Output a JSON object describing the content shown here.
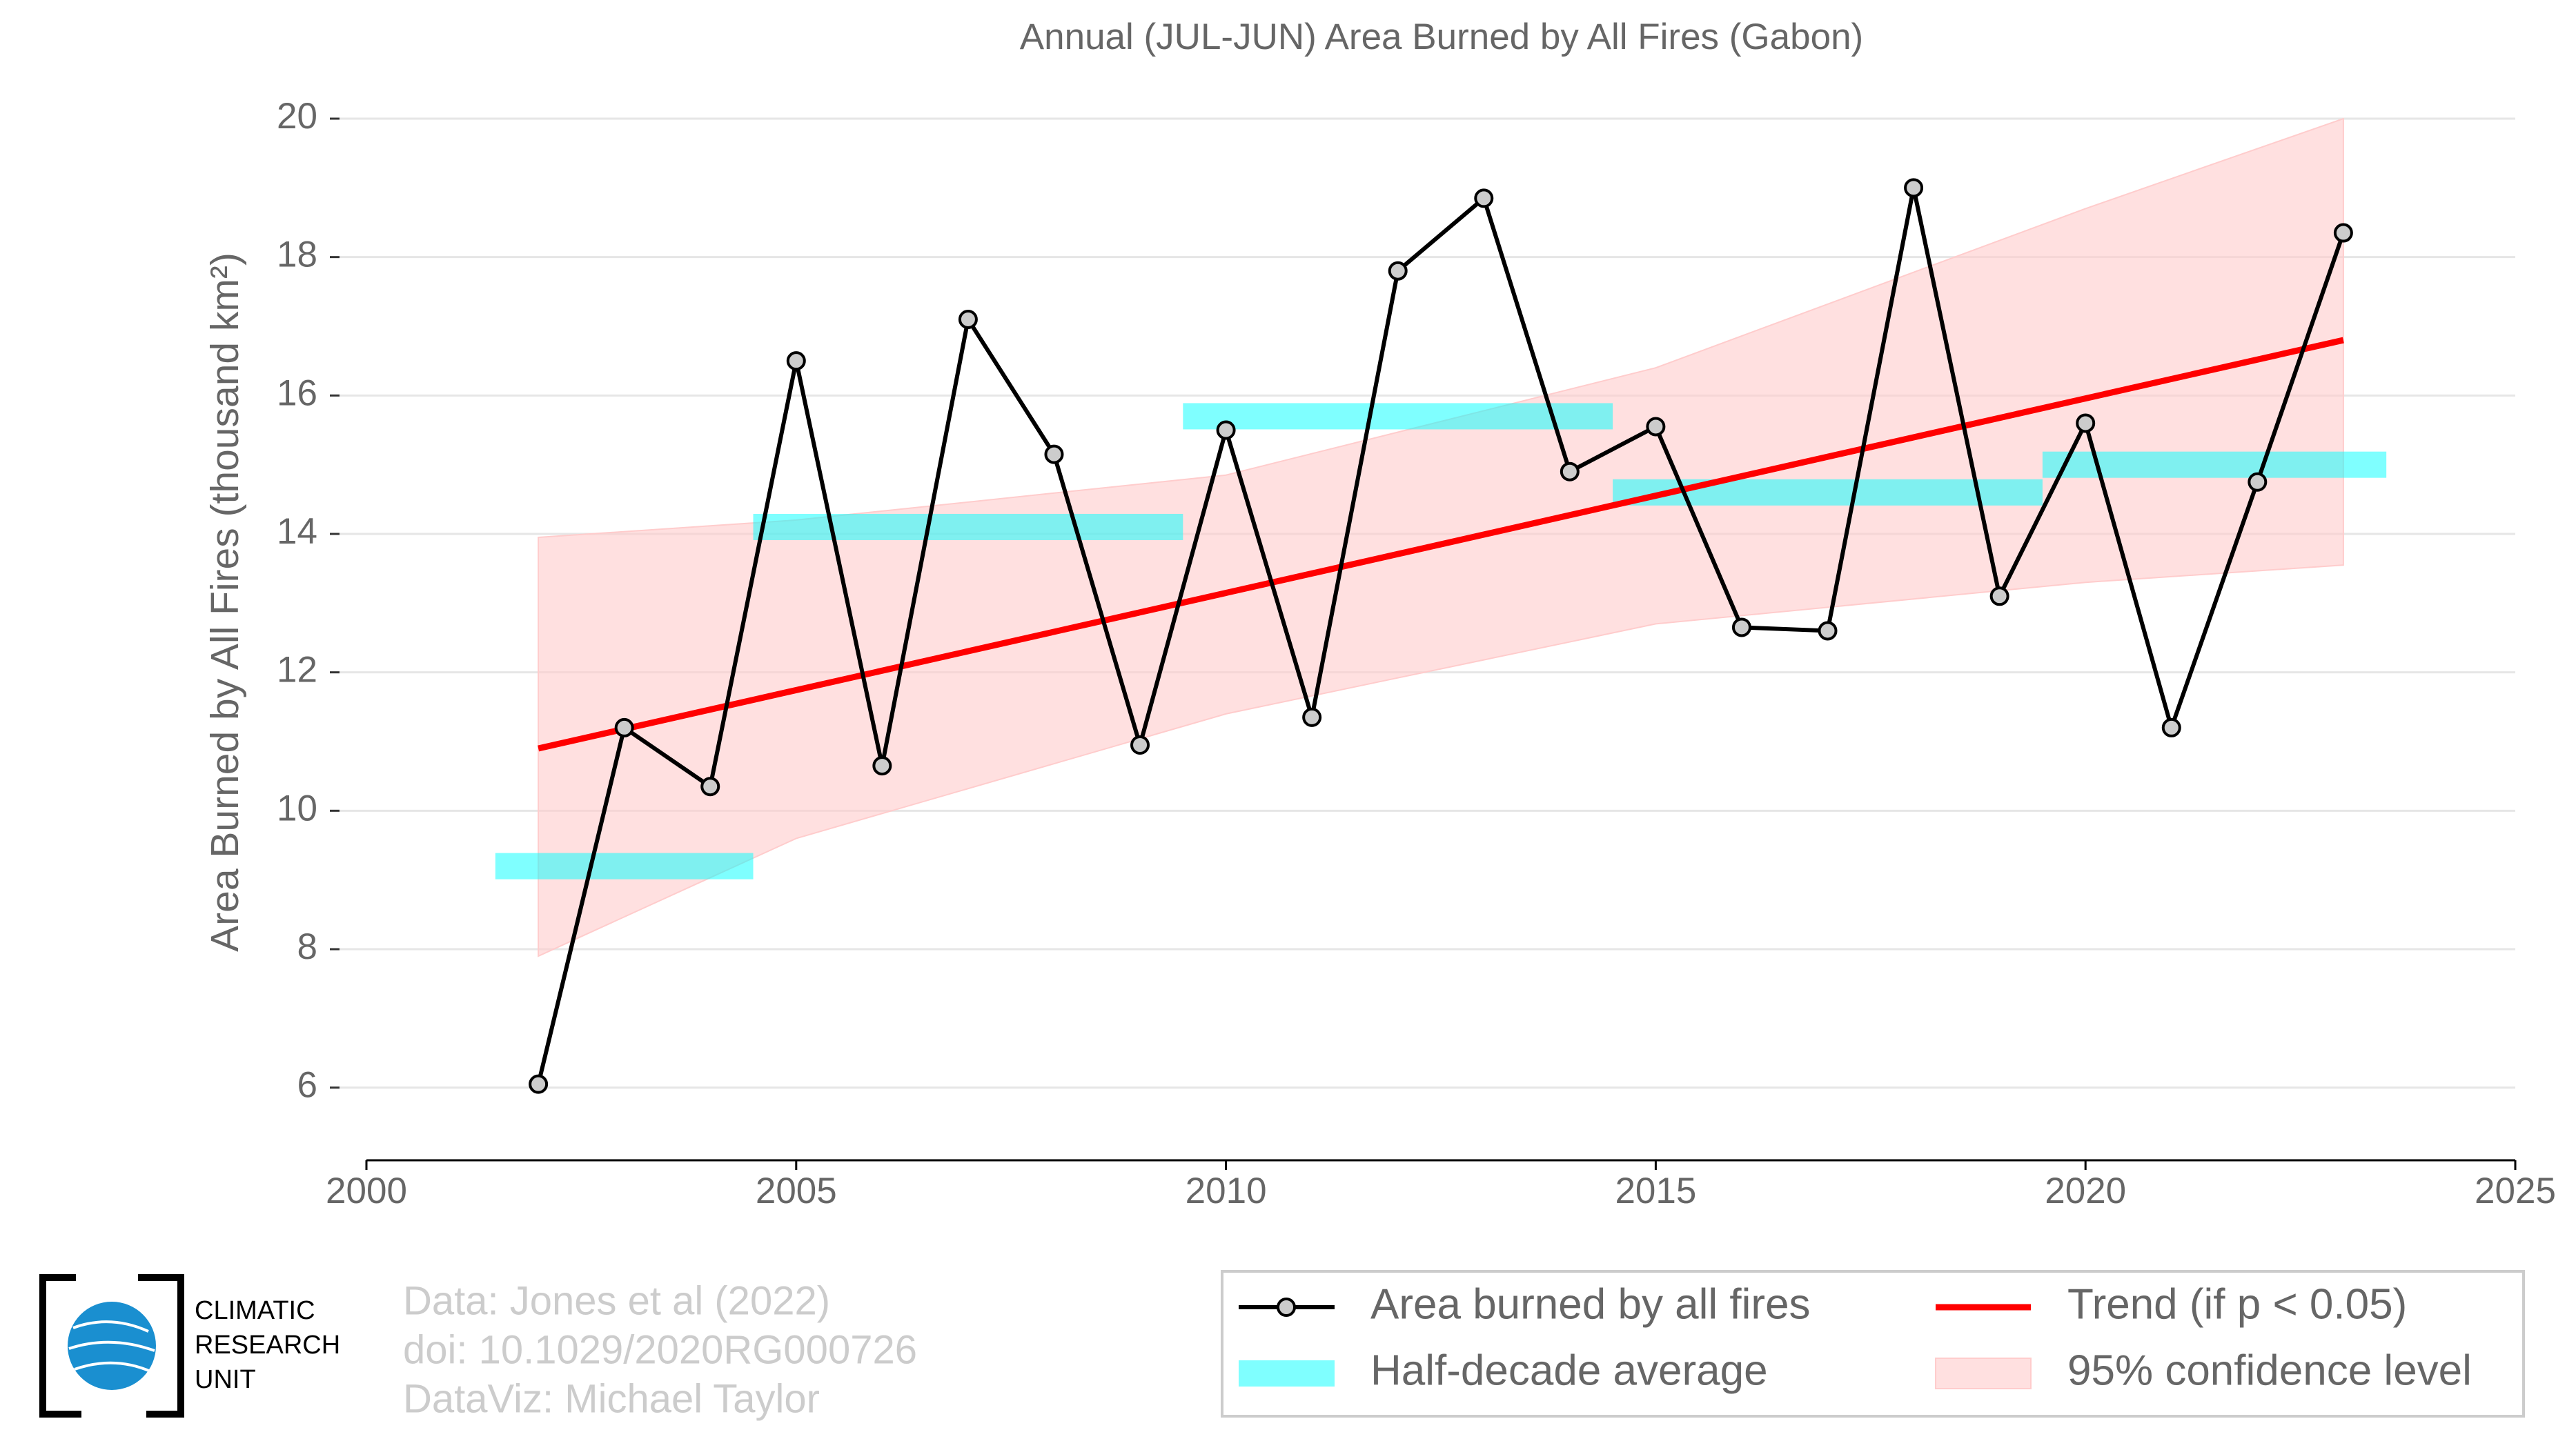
{
  "chart_data": {
    "type": "line",
    "title": "Annual (JUL-JUN) Area Burned by All Fires (Gabon)",
    "y_label": "Area Burned by All Fires (thousand km²)",
    "x": [
      2002,
      2003,
      2004,
      2005,
      2006,
      2007,
      2008,
      2009,
      2010,
      2011,
      2012,
      2013,
      2014,
      2015,
      2016,
      2017,
      2018,
      2019,
      2020,
      2021,
      2022,
      2023
    ],
    "series": [
      {
        "name": "Area burned by all fires",
        "color": "#000000",
        "values": [
          6.05,
          11.2,
          10.35,
          16.5,
          10.65,
          17.1,
          15.15,
          10.95,
          15.5,
          11.35,
          17.8,
          18.85,
          14.9,
          15.55,
          12.65,
          12.6,
          19.0,
          13.1,
          15.6,
          11.2,
          14.75,
          18.35
        ]
      }
    ],
    "half_decade_average": {
      "name": "Half-decade average",
      "color": "#00ffff",
      "x_start": [
        2001.5,
        2004.5,
        2009.5,
        2014.5,
        2019.5
      ],
      "x_end": [
        2004.5,
        2009.5,
        2014.5,
        2019.5,
        2023.5
      ],
      "values": [
        9.2,
        14.1,
        15.7,
        14.6,
        15.0
      ]
    },
    "trend": {
      "name": "Trend (if p < 0.05)",
      "color": "#ff0000",
      "x": [
        2002,
        2023
      ],
      "values": [
        10.9,
        16.8
      ]
    },
    "confidence": {
      "name": "95% confidence level",
      "color": "#ffcccc",
      "x": [
        2002,
        2005,
        2010,
        2015,
        2020,
        2023
      ],
      "upper": [
        13.95,
        14.2,
        14.85,
        16.4,
        18.7,
        20.0
      ],
      "lower": [
        7.9,
        9.6,
        11.4,
        12.7,
        13.3,
        13.55
      ]
    },
    "xlim": [
      2000,
      2025
    ],
    "xticks": [
      2000,
      2005,
      2010,
      2015,
      2020,
      2025
    ],
    "ylim": [
      4.95,
      20
    ],
    "yticks": [
      6,
      8,
      10,
      12,
      14,
      16,
      18,
      20
    ],
    "grid": true,
    "footer": {
      "logo": [
        "CLIMATIC",
        "RESEARCH",
        "UNIT"
      ],
      "source": [
        "Data: Jones et al (2022)",
        "doi: 10.1029/2020RG000726",
        "DataViz: Michael Taylor"
      ]
    }
  }
}
